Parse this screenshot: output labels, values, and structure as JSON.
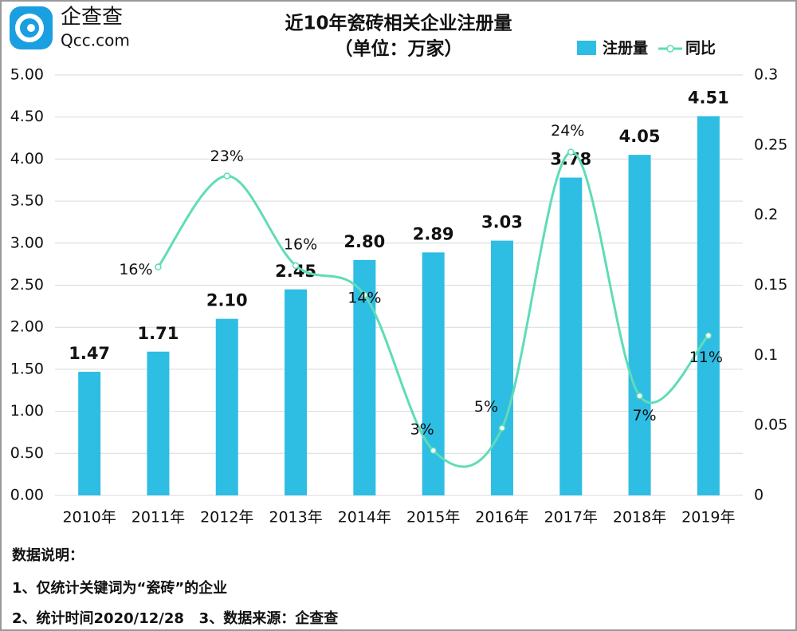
{
  "logo": {
    "name": "企查查",
    "site": "Qcc.com"
  },
  "chart_data": {
    "type": "bar-line",
    "title": "近10年瓷砖相关企业注册量",
    "subtitle": "（单位：万家）",
    "categories": [
      "2010年",
      "2011年",
      "2012年",
      "2013年",
      "2014年",
      "2015年",
      "2016年",
      "2017年",
      "2018年",
      "2019年"
    ],
    "series": [
      {
        "name": "注册量",
        "type": "bar",
        "color": "#2ebde3",
        "values": [
          1.47,
          1.71,
          2.1,
          2.45,
          2.8,
          2.89,
          3.03,
          3.78,
          4.05,
          4.51
        ],
        "value_labels": [
          "1.47",
          "1.71",
          "2.10",
          "2.45",
          "2.80",
          "2.89",
          "3.03",
          "3.78",
          "4.05",
          "4.51"
        ]
      },
      {
        "name": "同比",
        "type": "line",
        "axis": "y2",
        "color": "#5fdcb8",
        "values": [
          null,
          0.163,
          0.228,
          0.164,
          0.143,
          0.032,
          0.048,
          0.245,
          0.071,
          0.114
        ],
        "value_labels": [
          null,
          "16%",
          "23%",
          "16%",
          "14%",
          "3%",
          "5%",
          "24%",
          "7%",
          "11%"
        ]
      }
    ],
    "ylim": [
      0,
      5
    ],
    "yticks": [
      {
        "value": 0,
        "label": "0.00"
      },
      {
        "value": 0.5,
        "label": "0.50"
      },
      {
        "value": 1,
        "label": "1.00"
      },
      {
        "value": 1.5,
        "label": "1.50"
      },
      {
        "value": 2,
        "label": "2.00"
      },
      {
        "value": 2.5,
        "label": "2.50"
      },
      {
        "value": 3,
        "label": "3.00"
      },
      {
        "value": 3.5,
        "label": "3.50"
      },
      {
        "value": 4,
        "label": "4.00"
      },
      {
        "value": 4.5,
        "label": "4.50"
      },
      {
        "value": 5,
        "label": "5.00"
      }
    ],
    "y2lim": [
      0,
      0.3
    ],
    "y2ticks": [
      0,
      0.05,
      0.1,
      0.15,
      0.2,
      0.25,
      0.3
    ],
    "grid": true,
    "legend": "top-right"
  },
  "notes": {
    "heading": "数据说明：",
    "lines": [
      "1、仅统计关键词为“瓷砖”的企业",
      "2、统计时间2020/12/28   3、数据来源：企查查"
    ]
  }
}
